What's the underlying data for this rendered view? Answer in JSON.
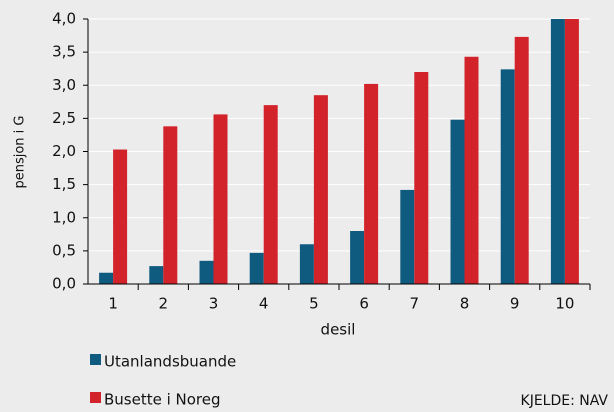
{
  "chart_data": {
    "type": "bar",
    "categories": [
      "1",
      "2",
      "3",
      "4",
      "5",
      "6",
      "7",
      "8",
      "9",
      "10"
    ],
    "series": [
      {
        "name": "Utanlandsbuande",
        "color": "#0f5b80",
        "values": [
          0.17,
          0.27,
          0.35,
          0.47,
          0.6,
          0.8,
          1.42,
          2.48,
          3.24,
          4.0
        ]
      },
      {
        "name": "Busette i Noreg",
        "color": "#d2232a",
        "values": [
          2.03,
          2.38,
          2.56,
          2.7,
          2.85,
          3.02,
          3.2,
          3.43,
          3.73,
          4.0
        ]
      }
    ],
    "xlabel": "desil",
    "ylabel": "pensjon i G",
    "ylim": [
      0,
      4
    ],
    "yticks": [
      {
        "value": 0,
        "label": "0,0"
      },
      {
        "value": 0.5,
        "label": "0,5"
      },
      {
        "value": 1,
        "label": "1,0"
      },
      {
        "value": 1.5,
        "label": "1,5"
      },
      {
        "value": 2,
        "label": "2,0"
      },
      {
        "value": 2.5,
        "label": "2,5"
      },
      {
        "value": 3,
        "label": "3,0"
      },
      {
        "value": 3.5,
        "label": "3,5"
      },
      {
        "value": 4,
        "label": "4,0"
      }
    ],
    "grid": true,
    "source": "KJELDE: NAV"
  }
}
